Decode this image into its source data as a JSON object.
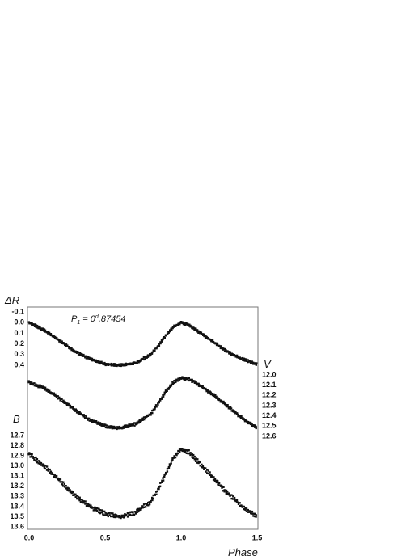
{
  "chart_data": {
    "type": "scatter",
    "annotation": {
      "prefix": "P",
      "subscript": "1",
      "eq": " = 0",
      "sup": "d",
      "value": ".87454"
    },
    "x_axis": {
      "label": "Phase",
      "range": [
        0.0,
        1.5
      ],
      "ticks": [
        "0.0",
        "0.5",
        "1.0",
        "1.5"
      ]
    },
    "left_top_axis": {
      "label": "ΔR",
      "range": [
        -0.1,
        0.4
      ],
      "ticks": [
        "-0.1",
        "0.0",
        "0.1",
        "0.2",
        "0.3",
        "0.4"
      ]
    },
    "right_axis": {
      "label": "V",
      "range": [
        12.0,
        12.6
      ],
      "ticks": [
        "12.0",
        "12.1",
        "12.2",
        "12.3",
        "12.4",
        "12.5",
        "12.6"
      ]
    },
    "left_bottom_axis": {
      "label": "B",
      "range": [
        12.7,
        13.6
      ],
      "ticks": [
        "12.7",
        "12.8",
        "12.9",
        "13.0",
        "13.1",
        "13.2",
        "13.3",
        "13.4",
        "13.5",
        "13.6"
      ]
    },
    "series": [
      {
        "axis": "left_top_axis",
        "phase": [
          0.0,
          0.1,
          0.2,
          0.3,
          0.4,
          0.5,
          0.6,
          0.7,
          0.8,
          0.85,
          0.9,
          0.95,
          1.0,
          1.05,
          1.1,
          1.2,
          1.3,
          1.4,
          1.5
        ],
        "mag": [
          0.0,
          0.07,
          0.17,
          0.27,
          0.34,
          0.39,
          0.4,
          0.38,
          0.3,
          0.22,
          0.12,
          0.04,
          0.0,
          0.02,
          0.07,
          0.17,
          0.27,
          0.34,
          0.39
        ]
      },
      {
        "axis": "right_axis",
        "phase": [
          0.0,
          0.1,
          0.2,
          0.3,
          0.4,
          0.5,
          0.6,
          0.7,
          0.8,
          0.85,
          0.9,
          0.95,
          1.0,
          1.05,
          1.1,
          1.2,
          1.3,
          1.4,
          1.5
        ],
        "mag": [
          12.07,
          12.13,
          12.23,
          12.34,
          12.44,
          12.5,
          12.52,
          12.48,
          12.38,
          12.28,
          12.16,
          12.07,
          12.03,
          12.04,
          12.08,
          12.18,
          12.3,
          12.42,
          12.52
        ]
      },
      {
        "axis": "left_bottom_axis",
        "phase": [
          0.0,
          0.1,
          0.2,
          0.3,
          0.4,
          0.5,
          0.6,
          0.7,
          0.8,
          0.85,
          0.9,
          0.95,
          1.0,
          1.05,
          1.1,
          1.2,
          1.3,
          1.4,
          1.5
        ],
        "mag": [
          12.88,
          13.0,
          13.14,
          13.29,
          13.4,
          13.47,
          13.5,
          13.46,
          13.35,
          13.23,
          13.07,
          12.92,
          12.84,
          12.86,
          12.94,
          13.1,
          13.26,
          13.4,
          13.5
        ]
      }
    ]
  }
}
